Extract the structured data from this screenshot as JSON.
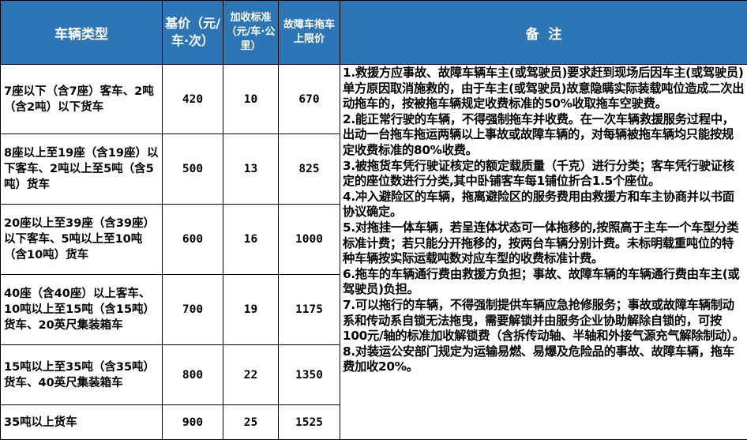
{
  "header": {
    "type": "车辆类型",
    "base": "基价（元/车·次）",
    "extra": "加收标准（元/车·公里）",
    "limit": "故障车拖车上限价",
    "notes": "备  注"
  },
  "colors": {
    "header_bg": "#2E75B6",
    "header_text": "#FFFFFF",
    "border": "#000000"
  },
  "rows": [
    {
      "type": "7座以下（含7座）客车、2吨（含2吨）以下货车",
      "base": "420",
      "extra": "10",
      "limit": "670"
    },
    {
      "type": "8座以上至19座（含19座）以下客车、2吨以上至5吨（含5吨）货车",
      "base": "500",
      "extra": "13",
      "limit": "825"
    },
    {
      "type": "20座以上至39座（含39座）以下客车、5吨以上至10吨（含10吨）货车",
      "base": "600",
      "extra": "16",
      "limit": "1000"
    },
    {
      "type": "40座（含40座）以上客车、10吨以上至15吨（含15吨）货车、20英尺集装箱车",
      "base": "700",
      "extra": "19",
      "limit": "1175"
    },
    {
      "type": "15吨以上至35吨（含35吨）货车、40英尺集装箱车",
      "base": "800",
      "extra": "22",
      "limit": "1350"
    },
    {
      "type": "35吨以上货车",
      "base": "900",
      "extra": "25",
      "limit": "1525"
    }
  ],
  "notes": [
    "1.救援方应事故、故障车辆车主(或驾驶员)要求赶到现场后因车主(或驾驶员)单方原因取消施救的，由于车主(或驾驶员)故意隐瞒实际装载吨位造成二次出动拖车的，按被拖车辆规定收费标准的50%收取拖车空驶费。",
    "2.能正常行驶的车辆，不得强制拖车并收费。在一次车辆救援服务过程中，出动一台拖车拖运两辆以上事故或故障车辆的，对每辆被拖车辆均只能按规定收费标准的80%收费。",
    "3.被拖货车凭行驶证核定的额定载质量（千克）进行分类；客车凭行驶证核定的座位数进行分类,其中卧铺客车每1铺位折合1.5个座位。",
    "4.冲入避险区的车辆，拖离避险区的服务费用由救援方和车主协商并以书面协议确定。",
    "5.对拖挂一体车辆，若呈连体状态可一体拖移的,按照高于主车一个车型分类标准计费；若只能分开拖移的，按两台车辆分别计费。未标明载重吨位的特种车辆按实际运载吨数对应车型的收费标准计费。",
    "6.拖车的车辆通行费由救援方负担；事故、故障车辆的车辆通行费由车主(或驾驶员)负担。",
    "7.可以拖行的车辆，不得强制提供车辆应急抢修服务；事故或故障车辆制动系和传动系自锁无法拖曳，需要解锁并由服务企业协助解除自锁的，可按100元/轴的标准加收解锁费（含拆传动轴、半轴和外接气源充气解除制动）。",
    "8.对装运公安部门规定为运输易燃、易爆及危险品的事故、故障车辆，拖车费加收20%。"
  ]
}
